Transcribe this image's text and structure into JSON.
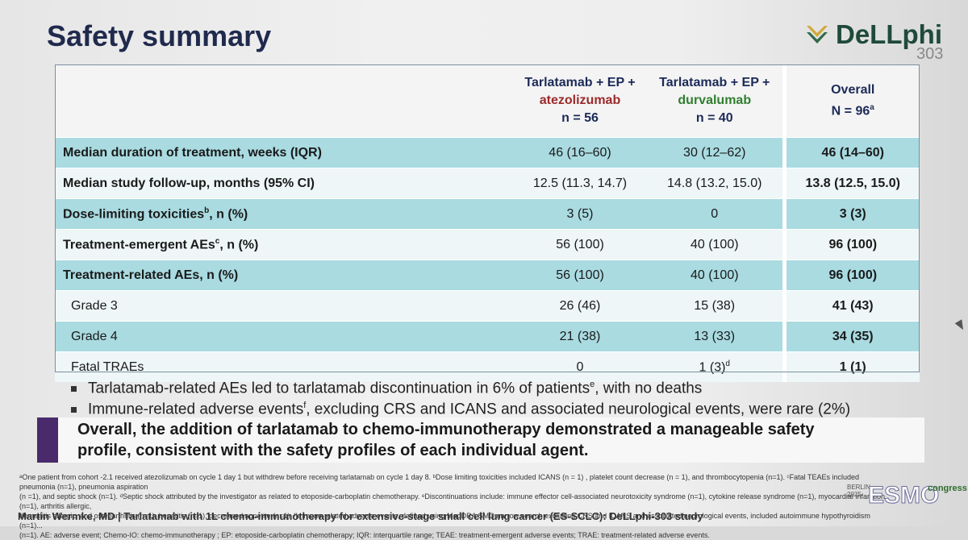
{
  "slide": {
    "title": "Safety summary",
    "logo": {
      "name": "DeLLphi",
      "number": "303"
    },
    "table": {
      "headers": [
        {
          "line1": "Tarlatamab + EP +",
          "line2": "atezolizumab",
          "line3": "n = 56"
        },
        {
          "line1": "Tarlatamab + EP +",
          "line2": "durvalumab",
          "line3": "n = 40"
        },
        {
          "line1": "Overall",
          "line2": "N = 96",
          "sup": "a"
        }
      ],
      "rows": [
        {
          "label": "Median duration of treatment, weeks (IQR)",
          "sup": "",
          "v1": "46 (16–60)",
          "v2": "30 (12–62)",
          "v3": "46 (14–60)"
        },
        {
          "label": "Median study follow-up, months (95% CI)",
          "sup": "",
          "v1": "12.5 (11.3, 14.7)",
          "v2": "14.8 (13.2, 15.0)",
          "v3": "13.8 (12.5, 15.0)"
        },
        {
          "label": "Dose-limiting toxicities",
          "sup": "b",
          "suffix": ",  n (%)",
          "v1": "3 (5)",
          "v2": "0",
          "v3": "3 (3)"
        },
        {
          "label": "Treatment-emergent AEs",
          "sup": "c",
          "suffix": ", n (%)",
          "v1": "56 (100)",
          "v2": "40 (100)",
          "v3": "96 (100)"
        },
        {
          "label": "Treatment-related AEs, n (%)",
          "sup": "",
          "v1": "56 (100)",
          "v2": "40 (100)",
          "v3": "96 (100)"
        },
        {
          "label": "Grade 3",
          "sup": "",
          "v1": "26 (46)",
          "v2": "15 (38)",
          "v3": "41 (43)"
        },
        {
          "label": "Grade 4",
          "sup": "",
          "v1": "21 (38)",
          "v2": "13 (33)",
          "v3": "34 (35)"
        },
        {
          "label": "Fatal TRAEs",
          "sup": "",
          "v1": "0",
          "v2": "1 (3)",
          "v2sup": "d",
          "v3": "1 (1)"
        }
      ]
    },
    "bullets": [
      {
        "text": "Tarlatamab-related AEs led to tarlatamab discontinuation in 6% of patients",
        "sup": "e",
        "after": ", with no deaths"
      },
      {
        "text": "Immune-related adverse events",
        "sup": "f",
        "after": ", excluding CRS and ICANS and associated neurological events, were rare (2%)"
      }
    ],
    "conclusion": {
      "line1": "Overall, the addition of tarlatamab to chemo-immunotherapy demonstrated a manageable safety",
      "line2": "profile, consistent with the safety profiles of each individual agent."
    },
    "footnotes": {
      "line1": "ᵃOne patient from cohort -2.1  received atezolizumab on cycle 1 day 1 but withdrew before receiving tarlatamab on cycle 1 day 8. ᵇDose limiting toxicities included ICANS (n = 1) , platelet count decrease (n = 1), and thrombocytopenia (n=1). ᶜFatal TEAEs included pneumonia (n=1), pneumonia aspiration",
      "line2": "(n =1), and septic shock (n=1). ᵈSeptic shock  attributed by the investigator as related to etoposide-carboplatin chemotherapy. ᵉDiscontinuations include: immune effector cell-associated neurotoxicity syndrome (n=1), cytokine release syndrome (n=1), myocardial infarction  (n=1), arthritis allergic,",
      "line3": "dermatitis allergic, and  osteoarthritis (n=1), hepatitis (n=1), decreased appetite (n=1). ᶠImmune-related adverse events, defined using MedDRA SMQ narrow search excluding CRS and ICANS and associated neurological events, included autoimmune hypothyroidism (n=1)...",
      "line4": "(n=1). AE: adverse event; Chemo-IO: chemo-immunotherapy ; EP: etoposide-carboplatin chemotherapy;  IQR: interquartile range; TEAE: treatment-emergent adverse events;  TRAE: treatment-related adverse events."
    },
    "author": "Martin Wermke, MD | Tarlatamab with 1L chemo-immunotherapy for extensive-stage small cell lung cancer (ES-SCLC): DeLLphi-303 study",
    "congress": {
      "city": "BERLIN\n2025",
      "brand": "ESMO",
      "label": "congress"
    },
    "colors": {
      "teal": "#a9dbe1",
      "navy": "#1c2a58",
      "purple": "#4a2a6b",
      "red": "#9b2a2a",
      "green": "#2f7f2f"
    }
  }
}
